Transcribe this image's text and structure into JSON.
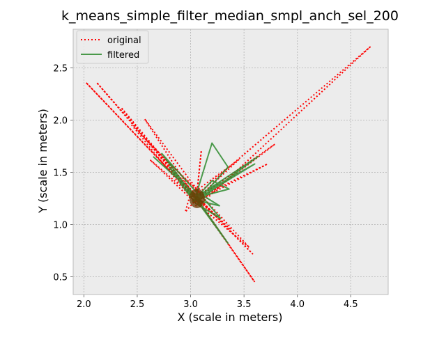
{
  "chart_data": {
    "type": "line",
    "title": "k_means_simple_filter_median_smpl_anch_sel_200",
    "xlabel": "X (scale in meters)",
    "ylabel": "Y (scale in meters)",
    "xlim": [
      1.9,
      4.85
    ],
    "ylim": [
      0.33,
      2.87
    ],
    "x_ticks": [
      2.0,
      2.5,
      3.0,
      3.5,
      4.0,
      4.5
    ],
    "y_ticks": [
      0.5,
      1.0,
      1.5,
      2.0,
      2.5
    ],
    "x_tick_labels": [
      "2.0",
      "2.5",
      "3.0",
      "3.5",
      "4.0",
      "4.5"
    ],
    "y_tick_labels": [
      "0.5",
      "1.0",
      "1.5",
      "2.0",
      "2.5"
    ],
    "grid": true,
    "legend_position": "upper-left",
    "colors": {
      "background": "#ececec",
      "grid": "#b0b0b0",
      "original": "#ff0000",
      "filtered": "#2e8b2e"
    },
    "series": [
      {
        "name": "original",
        "style": "dotted",
        "color": "#ff0000",
        "points": [
          [
            3.05,
            1.25
          ],
          [
            2.02,
            2.36
          ],
          [
            3.1,
            1.2
          ],
          [
            4.68,
            2.7
          ],
          [
            3.05,
            1.28
          ],
          [
            2.12,
            2.36
          ],
          [
            3.08,
            1.22
          ],
          [
            3.6,
            0.45
          ],
          [
            3.05,
            1.25
          ],
          [
            2.57,
            2.01
          ],
          [
            3.1,
            1.28
          ],
          [
            3.79,
            1.77
          ],
          [
            3.06,
            1.2
          ],
          [
            2.35,
            2.12
          ],
          [
            3.02,
            1.3
          ],
          [
            3.58,
            0.72
          ],
          [
            3.08,
            1.25
          ],
          [
            2.7,
            1.68
          ],
          [
            3.12,
            1.28
          ],
          [
            3.72,
            1.58
          ],
          [
            3.05,
            1.22
          ],
          [
            3.1,
            1.71
          ],
          [
            3.05,
            1.2
          ],
          [
            2.45,
            1.95
          ],
          [
            3.08,
            1.3
          ],
          [
            3.55,
            0.78
          ],
          [
            3.0,
            1.25
          ],
          [
            2.62,
            1.62
          ],
          [
            3.1,
            1.2
          ],
          [
            3.38,
            0.95
          ],
          [
            3.02,
            1.3
          ],
          [
            3.45,
            1.62
          ],
          [
            3.06,
            1.25
          ],
          [
            2.95,
            1.12
          ],
          [
            3.0,
            1.3
          ],
          [
            3.05,
            1.18
          ],
          [
            3.12,
            1.27
          ]
        ]
      },
      {
        "name": "filtered",
        "style": "solid",
        "color": "#2e8b2e",
        "points": [
          [
            2.65,
            1.65
          ],
          [
            3.05,
            1.28
          ],
          [
            3.2,
            1.78
          ],
          [
            3.35,
            1.55
          ],
          [
            3.06,
            1.22
          ],
          [
            3.63,
            1.65
          ],
          [
            3.05,
            1.26
          ],
          [
            3.35,
            0.82
          ],
          [
            3.05,
            1.24
          ],
          [
            2.73,
            1.68
          ],
          [
            3.08,
            1.28
          ],
          [
            3.6,
            1.58
          ],
          [
            3.02,
            1.22
          ],
          [
            3.2,
            1.42
          ],
          [
            3.36,
            1.34
          ],
          [
            3.06,
            1.26
          ],
          [
            2.8,
            1.55
          ],
          [
            3.05,
            1.2
          ],
          [
            3.28,
            1.06
          ],
          [
            3.08,
            1.3
          ],
          [
            3.27,
            1.18
          ],
          [
            3.02,
            1.24
          ],
          [
            2.9,
            1.4
          ],
          [
            3.07,
            1.22
          ],
          [
            3.22,
            1.36
          ],
          [
            3.04,
            1.27
          ]
        ]
      }
    ]
  }
}
